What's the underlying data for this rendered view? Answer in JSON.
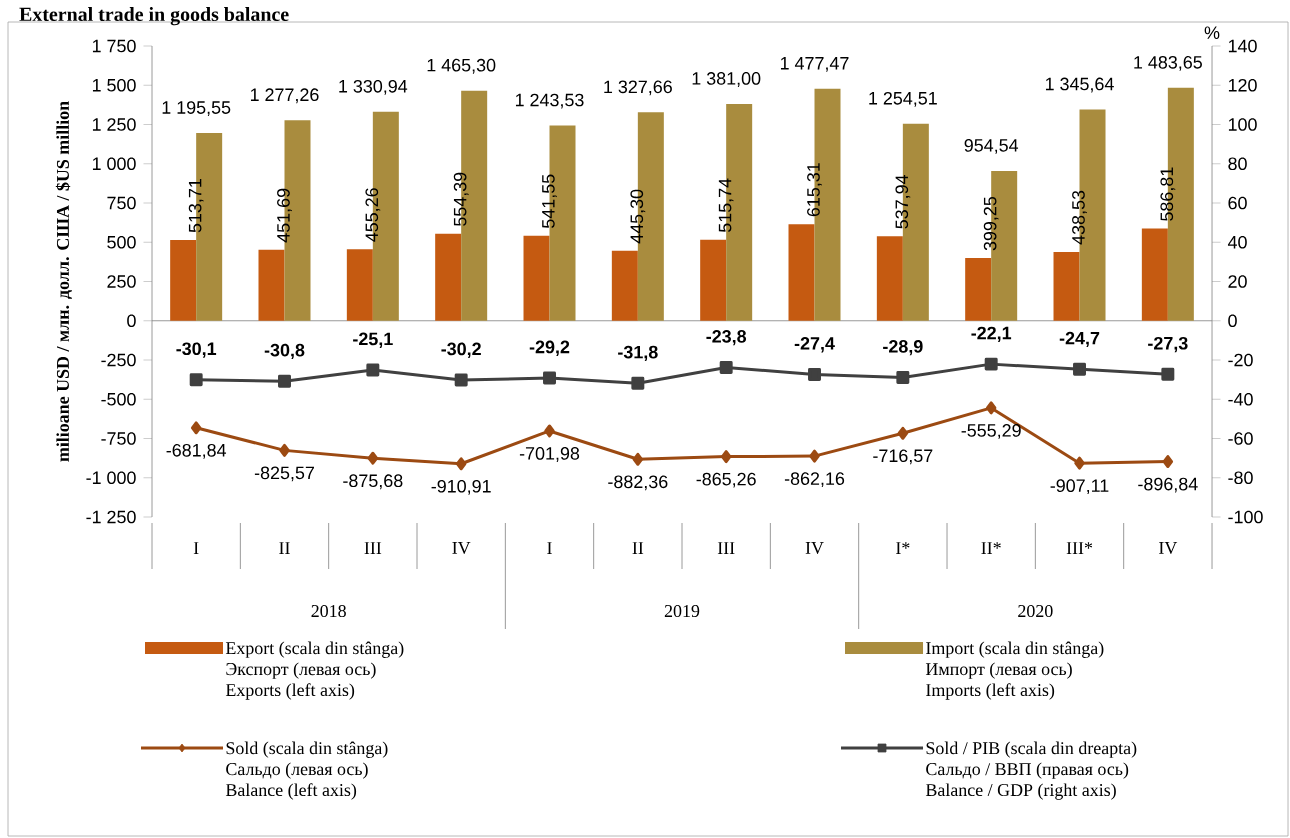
{
  "chart_data": {
    "type": "bar",
    "title": "External trade in goods balance",
    "categories": [
      "I",
      "II",
      "III",
      "IV",
      "I",
      "II",
      "III",
      "IV",
      "I*",
      "II*",
      "III*",
      "IV"
    ],
    "ylabel": "milioane USD / млн. долл. США / $US million",
    "y2label": "%",
    "series": [
      {
        "name": "Export (scala din stânga)\nЭкспорт (левая ось)\nExports (left axis)",
        "color": "#c55a11",
        "values": [
          513.71,
          451.69,
          455.26,
          554.39,
          541.55,
          445.3,
          515.74,
          615.31,
          537.94,
          399.25,
          438.53,
          586.81
        ],
        "value_labels": [
          "513,71",
          "451,69",
          "455,26",
          "554,39",
          "541,55",
          "445,30",
          "515,74",
          "615,31",
          "537,94",
          "399,25",
          "438,53",
          "586,81"
        ]
      },
      {
        "name": "Import (scala din stânga)\nИмпорт (левая ось)\nImports (left axis)",
        "color": "#a98c3e",
        "values": [
          1195.55,
          1277.26,
          1330.94,
          1465.3,
          1243.53,
          1327.66,
          1381.0,
          1477.47,
          1254.51,
          954.54,
          1345.64,
          1483.65
        ],
        "value_labels": [
          "1 195,55",
          "1 277,26",
          "1 330,94",
          "1 465,30",
          "1 243,53",
          "1 327,66",
          "1 381,00",
          "1 477,47",
          "1 254,51",
          "954,54",
          "1 345,64",
          "1 483,65"
        ]
      },
      {
        "name": "Sold (scala din stânga)\nСальдо (левая ось)\nBalance (left axis)",
        "type": "line",
        "marker": "diamond",
        "color": "#9c4a12",
        "values": [
          -681.84,
          -825.57,
          -875.68,
          -910.91,
          -701.98,
          -882.36,
          -865.26,
          -862.16,
          -716.57,
          -555.29,
          -907.11,
          -896.84
        ],
        "value_labels": [
          "-681,84",
          "-825,57",
          "-875,68",
          "-910,91",
          "-701,98",
          "-882,36",
          "-865,26",
          "-862,16",
          "-716,57",
          "-555,29",
          "-907,11",
          "-896,84"
        ]
      },
      {
        "name": "Sold / PIB (scala din dreapta)\nСальдо / ВВП (правая ось)\nBalance / GDP (right axis)",
        "type": "line",
        "axis": "y2",
        "marker": "square",
        "color": "#404040",
        "values": [
          -30.1,
          -30.8,
          -25.1,
          -30.2,
          -29.2,
          -31.8,
          -23.8,
          -27.4,
          -28.9,
          -22.1,
          -24.7,
          -27.3
        ],
        "value_labels": [
          "-30,1",
          "-30,8",
          "-25,1",
          "-30,2",
          "-29,2",
          "-31,8",
          "-23,8",
          "-27,4",
          "-28,9",
          "-22,1",
          "-24,7",
          "-27,3"
        ]
      }
    ],
    "ylim": [
      -1250,
      1750
    ],
    "yticks": [
      {
        "value": -1250,
        "label": "-1 250"
      },
      {
        "value": -1000,
        "label": "-1 000"
      },
      -750,
      -500,
      -250,
      0,
      250,
      500,
      750,
      {
        "value": 1000,
        "label": "1 000"
      },
      {
        "value": 1250,
        "label": "1 250"
      },
      {
        "value": 1500,
        "label": "1 500"
      },
      {
        "value": 1750,
        "label": "1 750"
      }
    ],
    "y2lim": [
      -100,
      140
    ],
    "y2ticks": [
      -100,
      -80,
      -60,
      -40,
      -20,
      0,
      20,
      40,
      60,
      80,
      100,
      120,
      140
    ],
    "annotations": [
      "2018",
      "2019",
      "2020"
    ],
    "legend": "bottom"
  }
}
